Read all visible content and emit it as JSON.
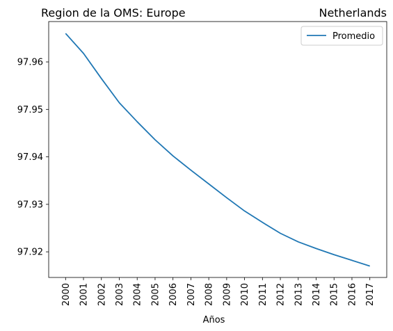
{
  "chart_data": {
    "type": "line",
    "title_left": "Region de la OMS: Europe",
    "title_right": "Netherlands",
    "xlabel": "Años",
    "ylabel": "",
    "x": [
      "2000",
      "2001",
      "2002",
      "2003",
      "2004",
      "2005",
      "2006",
      "2007",
      "2008",
      "2009",
      "2010",
      "2011",
      "2012",
      "2013",
      "2014",
      "2015",
      "2016",
      "2017"
    ],
    "series": [
      {
        "name": "Promedio",
        "color": "#1f77b4",
        "values": [
          97.966,
          97.9618,
          97.9565,
          97.9514,
          97.9474,
          97.9436,
          97.9402,
          97.9372,
          97.9343,
          97.9314,
          97.9286,
          97.9262,
          97.9239,
          97.9221,
          97.9207,
          97.9194,
          97.9182,
          97.917
        ]
      }
    ],
    "yticks": [
      97.92,
      97.93,
      97.94,
      97.95,
      97.96
    ],
    "ytick_labels": [
      "97.92",
      "97.93",
      "97.94",
      "97.95",
      "97.96"
    ],
    "ylim": [
      97.9146,
      97.9685
    ],
    "grid": false,
    "legend_position": "top-right"
  }
}
